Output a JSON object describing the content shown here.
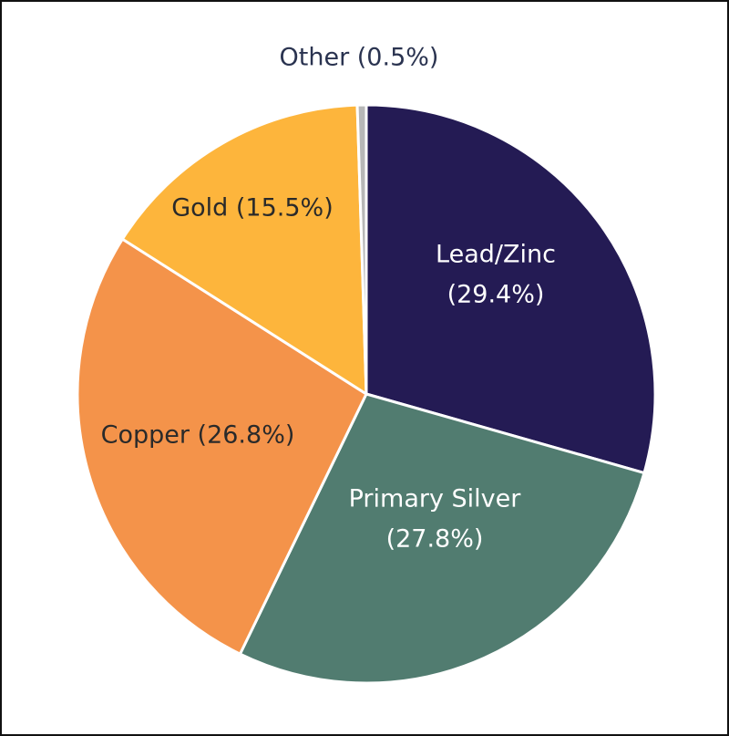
{
  "chart_data": {
    "type": "pie",
    "title": "",
    "slices": [
      {
        "label": [
          "Lead/Zinc",
          "(29.4%)"
        ],
        "value": 29.4,
        "color": "#241b54",
        "text_color": "#ffffff"
      },
      {
        "label": [
          "Primary Silver",
          "(27.8%)"
        ],
        "value": 27.8,
        "color": "#517c70",
        "text_color": "#ffffff"
      },
      {
        "label": [
          "Copper (26.8%)"
        ],
        "value": 26.8,
        "color": "#f4934a",
        "text_color": "#2a2a2a"
      },
      {
        "label": [
          "Gold (15.5%)"
        ],
        "value": 15.5,
        "color": "#fdb53c",
        "text_color": "#2a2a2a"
      },
      {
        "label": [
          "Other (0.5%)"
        ],
        "value": 0.5,
        "color": "#b7b7b7",
        "text_color": "#2a3350"
      }
    ]
  }
}
